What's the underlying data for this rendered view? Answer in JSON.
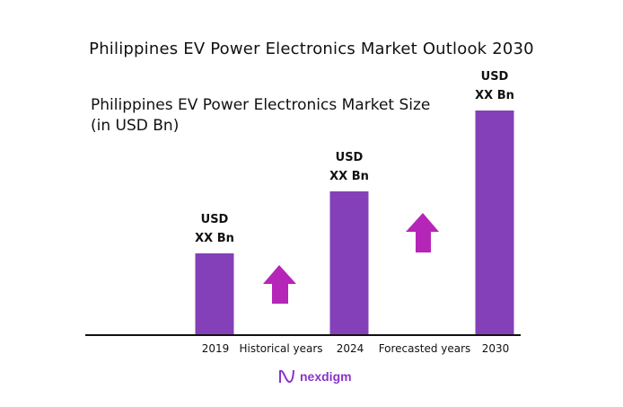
{
  "chart_data": {
    "type": "bar",
    "title": "Philippines EV Power Electronics Market Outlook 2030",
    "subtitle_line1": "Philippines EV Power Electronics Market  Size",
    "subtitle_line2": "(in USD Bn)",
    "categories": [
      "2019",
      "2024",
      "2030"
    ],
    "estimated_relative_values": [
      91,
      160,
      250
    ],
    "data_labels": [
      {
        "line1": "USD",
        "line2": "XX Bn"
      },
      {
        "line1": "USD",
        "line2": "XX Bn"
      },
      {
        "line1": "USD",
        "line2": "XX Bn"
      }
    ],
    "period_labels": [
      "Historical years",
      "Forecasted years"
    ],
    "xlabel": "",
    "ylabel": "",
    "grid": false
  },
  "colors": {
    "bar": "#8440b8",
    "arrow": "#b526b8",
    "axis": "#111111",
    "logo": "#8a35c8"
  },
  "logo": {
    "text": "nexdigm"
  }
}
